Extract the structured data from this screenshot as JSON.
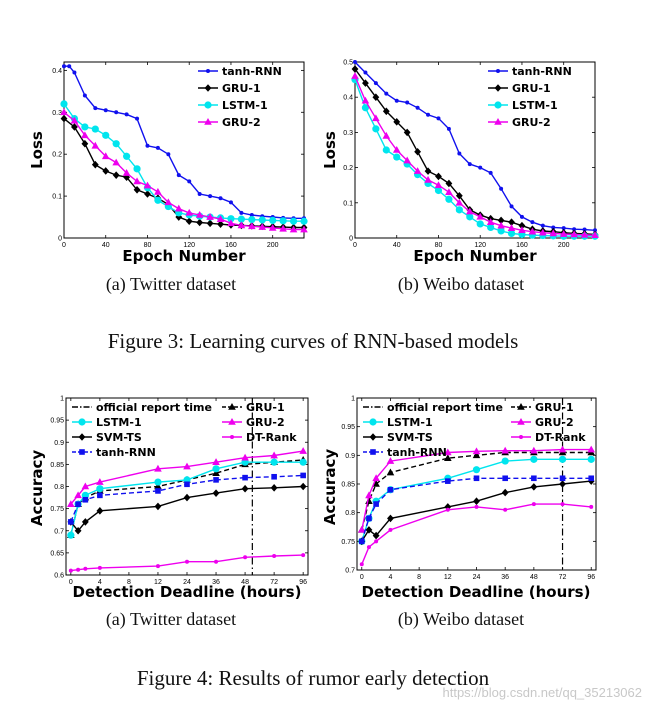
{
  "figure3": {
    "caption": "Figure 3: Learning curves of RNN-based models",
    "panels": [
      {
        "sub_caption": "(a)  Twitter dataset"
      },
      {
        "sub_caption": "(b)  Weibo dataset"
      }
    ]
  },
  "figure4": {
    "caption": "Figure 4: Results of rumor early detection",
    "panels": [
      {
        "sub_caption": "(a)  Twitter dataset"
      },
      {
        "sub_caption": "(b)  Weibo dataset"
      }
    ]
  },
  "watermark": "https://blog.csdn.net/qq_35213062",
  "colors": {
    "tanh-RNN": "#1010ee",
    "GRU-1": "#000000",
    "LSTM-1": "#00e5ee",
    "GRU-2": "#ee00ee",
    "SVM-TS": "#000000",
    "DT-Rank": "#ee00ee",
    "official": "#000000"
  },
  "chart_data": [
    {
      "type": "line",
      "title": "(a)  Twitter dataset",
      "xlabel": "Epoch Number",
      "ylabel": "Loss",
      "xlim": [
        0,
        230
      ],
      "ylim": [
        0,
        0.42
      ],
      "xticks": [
        0,
        40,
        80,
        120,
        160,
        200
      ],
      "xtick_labels": [
        "0",
        "40",
        "80",
        "120",
        "160",
        "200"
      ],
      "yticks": [
        0,
        0.1,
        0.2,
        0.3,
        0.4
      ],
      "ytick_labels": [
        "0",
        "0.1",
        "0.2",
        "0.3",
        "0.4"
      ],
      "legend_position": "top-right",
      "series": [
        {
          "name": "tanh-RNN",
          "marker": "dot",
          "dash": false,
          "x": [
            0,
            5,
            10,
            20,
            30,
            40,
            50,
            60,
            70,
            80,
            90,
            100,
            110,
            120,
            130,
            140,
            150,
            160,
            170,
            180,
            190,
            200,
            210,
            220,
            230
          ],
          "values": [
            0.41,
            0.41,
            0.395,
            0.34,
            0.31,
            0.305,
            0.3,
            0.295,
            0.285,
            0.22,
            0.215,
            0.2,
            0.15,
            0.135,
            0.105,
            0.1,
            0.095,
            0.085,
            0.06,
            0.055,
            0.052,
            0.05,
            0.048,
            0.047,
            0.047
          ]
        },
        {
          "name": "GRU-1",
          "marker": "diamond",
          "dash": false,
          "x": [
            0,
            10,
            20,
            30,
            40,
            50,
            60,
            70,
            80,
            90,
            100,
            110,
            120,
            130,
            140,
            150,
            160,
            170,
            180,
            190,
            200,
            210,
            220,
            230
          ],
          "values": [
            0.285,
            0.265,
            0.225,
            0.175,
            0.16,
            0.15,
            0.145,
            0.115,
            0.105,
            0.095,
            0.08,
            0.05,
            0.04,
            0.037,
            0.035,
            0.033,
            0.031,
            0.03,
            0.029,
            0.028,
            0.027,
            0.026,
            0.025,
            0.025
          ]
        },
        {
          "name": "LSTM-1",
          "marker": "circle",
          "dash": false,
          "x": [
            0,
            10,
            20,
            30,
            40,
            50,
            60,
            70,
            80,
            90,
            100,
            110,
            120,
            130,
            140,
            150,
            160,
            170,
            180,
            190,
            200,
            210,
            220,
            230
          ],
          "values": [
            0.32,
            0.285,
            0.265,
            0.26,
            0.245,
            0.225,
            0.195,
            0.165,
            0.12,
            0.09,
            0.075,
            0.06,
            0.055,
            0.052,
            0.05,
            0.048,
            0.046,
            0.045,
            0.044,
            0.043,
            0.042,
            0.041,
            0.04,
            0.04
          ]
        },
        {
          "name": "GRU-2",
          "marker": "triangle",
          "dash": false,
          "x": [
            0,
            10,
            20,
            30,
            40,
            50,
            60,
            70,
            80,
            90,
            100,
            110,
            120,
            130,
            140,
            150,
            160,
            170,
            180,
            190,
            200,
            210,
            220,
            230
          ],
          "values": [
            0.3,
            0.28,
            0.245,
            0.22,
            0.195,
            0.18,
            0.155,
            0.135,
            0.125,
            0.11,
            0.085,
            0.07,
            0.06,
            0.055,
            0.05,
            0.045,
            0.035,
            0.03,
            0.028,
            0.026,
            0.024,
            0.022,
            0.02,
            0.02
          ]
        }
      ]
    },
    {
      "type": "line",
      "title": "(b)  Weibo dataset",
      "xlabel": "Epoch Number",
      "ylabel": "Loss",
      "xlim": [
        0,
        230
      ],
      "ylim": [
        0,
        0.5
      ],
      "xticks": [
        0,
        40,
        80,
        120,
        160,
        200
      ],
      "xtick_labels": [
        "0",
        "40",
        "80",
        "120",
        "160",
        "200"
      ],
      "yticks": [
        0,
        0.1,
        0.2,
        0.3,
        0.4,
        0.5
      ],
      "ytick_labels": [
        "0",
        "0.1",
        "0.2",
        "0.3",
        "0.4",
        "0.5"
      ],
      "legend_position": "top-right",
      "series": [
        {
          "name": "tanh-RNN",
          "marker": "dot",
          "dash": false,
          "x": [
            0,
            10,
            20,
            30,
            40,
            50,
            60,
            70,
            80,
            90,
            100,
            110,
            120,
            130,
            140,
            150,
            160,
            170,
            180,
            190,
            200,
            210,
            220,
            230
          ],
          "values": [
            0.5,
            0.47,
            0.44,
            0.41,
            0.39,
            0.385,
            0.37,
            0.35,
            0.34,
            0.31,
            0.24,
            0.21,
            0.2,
            0.185,
            0.14,
            0.09,
            0.06,
            0.045,
            0.035,
            0.03,
            0.028,
            0.025,
            0.024,
            0.022
          ]
        },
        {
          "name": "GRU-1",
          "marker": "diamond",
          "dash": false,
          "x": [
            0,
            10,
            20,
            30,
            40,
            50,
            60,
            70,
            80,
            90,
            100,
            110,
            120,
            130,
            140,
            150,
            160,
            170,
            180,
            190,
            200,
            210,
            220,
            230
          ],
          "values": [
            0.48,
            0.44,
            0.4,
            0.36,
            0.33,
            0.3,
            0.245,
            0.19,
            0.175,
            0.155,
            0.12,
            0.08,
            0.065,
            0.055,
            0.05,
            0.045,
            0.035,
            0.025,
            0.02,
            0.018,
            0.015,
            0.013,
            0.012,
            0.01
          ]
        },
        {
          "name": "LSTM-1",
          "marker": "circle",
          "dash": false,
          "x": [
            0,
            10,
            20,
            30,
            40,
            50,
            60,
            70,
            80,
            90,
            100,
            110,
            120,
            130,
            140,
            150,
            160,
            170,
            180,
            190,
            200,
            210,
            220,
            230
          ],
          "values": [
            0.45,
            0.37,
            0.31,
            0.25,
            0.23,
            0.21,
            0.18,
            0.155,
            0.135,
            0.11,
            0.08,
            0.06,
            0.04,
            0.03,
            0.02,
            0.013,
            0.01,
            0.008,
            0.007,
            0.006,
            0.005,
            0.005,
            0.005,
            0.005
          ]
        },
        {
          "name": "GRU-2",
          "marker": "triangle",
          "dash": false,
          "x": [
            0,
            10,
            20,
            30,
            40,
            50,
            60,
            70,
            80,
            90,
            100,
            110,
            120,
            130,
            140,
            150,
            160,
            170,
            180,
            190,
            200,
            210,
            220,
            230
          ],
          "values": [
            0.46,
            0.39,
            0.34,
            0.29,
            0.25,
            0.22,
            0.19,
            0.165,
            0.15,
            0.13,
            0.1,
            0.075,
            0.06,
            0.045,
            0.035,
            0.028,
            0.022,
            0.018,
            0.015,
            0.013,
            0.011,
            0.01,
            0.009,
            0.008
          ]
        }
      ]
    },
    {
      "type": "line",
      "title": "(a)  Twitter dataset",
      "xlabel": "Detection Deadline (hours)",
      "ylabel": "Accuracy",
      "xlim": [
        0,
        100
      ],
      "ylim": [
        0.6,
        1.0
      ],
      "xticks": [
        0,
        4,
        8,
        12,
        24,
        36,
        48,
        72,
        96
      ],
      "xtick_positions": [
        0,
        1,
        2,
        3,
        4,
        5,
        6,
        7,
        8
      ],
      "xtick_labels": [
        "0",
        "4",
        "8",
        "12",
        "24",
        "36",
        "48",
        "72",
        "96"
      ],
      "yticks": [
        0.6,
        0.65,
        0.7,
        0.75,
        0.8,
        0.85,
        0.9,
        0.95,
        1.0
      ],
      "ytick_labels": [
        "0.6",
        "0.65",
        "0.7",
        "0.75",
        "0.8",
        "0.85",
        "0.9",
        "0.95",
        "1"
      ],
      "official_report_time": 54,
      "legend_position": "top",
      "series": [
        {
          "name": "official report time",
          "marker": "none",
          "dash": "dashdot"
        },
        {
          "name": "GRU-1",
          "marker": "triangle",
          "dash": true,
          "x": [
            0,
            1,
            2,
            4,
            12,
            24,
            36,
            48,
            72,
            96
          ],
          "values": [
            0.69,
            0.76,
            0.775,
            0.79,
            0.8,
            0.815,
            0.83,
            0.85,
            0.855,
            0.86
          ]
        },
        {
          "name": "LSTM-1",
          "marker": "circle",
          "dash": false,
          "x": [
            0,
            1,
            2,
            4,
            12,
            24,
            36,
            48,
            72,
            96
          ],
          "values": [
            0.69,
            0.76,
            0.78,
            0.795,
            0.81,
            0.815,
            0.84,
            0.855,
            0.855,
            0.855
          ]
        },
        {
          "name": "GRU-2",
          "marker": "triangle",
          "dash": false,
          "x": [
            0,
            1,
            2,
            4,
            12,
            24,
            36,
            48,
            72,
            96
          ],
          "values": [
            0.76,
            0.78,
            0.8,
            0.81,
            0.84,
            0.845,
            0.855,
            0.865,
            0.87,
            0.88
          ]
        },
        {
          "name": "SVM-TS",
          "marker": "diamond",
          "dash": false,
          "x": [
            0,
            1,
            2,
            4,
            12,
            24,
            36,
            48,
            72,
            96
          ],
          "values": [
            0.72,
            0.7,
            0.72,
            0.745,
            0.755,
            0.775,
            0.785,
            0.795,
            0.797,
            0.8
          ]
        },
        {
          "name": "DT-Rank",
          "marker": "dot",
          "dash": false,
          "x": [
            0,
            1,
            2,
            4,
            12,
            24,
            36,
            48,
            72,
            96
          ],
          "values": [
            0.61,
            0.612,
            0.614,
            0.616,
            0.62,
            0.63,
            0.63,
            0.64,
            0.643,
            0.645
          ]
        },
        {
          "name": "tanh-RNN",
          "marker": "square",
          "dash": true,
          "x": [
            0,
            1,
            2,
            4,
            12,
            24,
            36,
            48,
            72,
            96
          ],
          "values": [
            0.72,
            0.76,
            0.77,
            0.78,
            0.79,
            0.805,
            0.815,
            0.82,
            0.822,
            0.825
          ]
        }
      ]
    },
    {
      "type": "line",
      "title": "(b)  Weibo dataset",
      "xlabel": "Detection Deadline (hours)",
      "ylabel": "Accuracy",
      "xlim": [
        0,
        100
      ],
      "ylim": [
        0.7,
        1.0
      ],
      "xticks": [
        0,
        4,
        8,
        12,
        24,
        36,
        48,
        72,
        96
      ],
      "xtick_positions": [
        0,
        1,
        2,
        3,
        4,
        5,
        6,
        7,
        8
      ],
      "xtick_labels": [
        "0",
        "4",
        "8",
        "12",
        "24",
        "36",
        "48",
        "72",
        "96"
      ],
      "yticks": [
        0.7,
        0.75,
        0.8,
        0.85,
        0.9,
        0.95,
        1.0
      ],
      "ytick_labels": [
        "0.7",
        "0.75",
        "0.8",
        "0.85",
        "0.9",
        "0.95",
        "1"
      ],
      "official_report_time": 72,
      "legend_position": "top",
      "series": [
        {
          "name": "official report time",
          "marker": "none",
          "dash": "dashdot"
        },
        {
          "name": "GRU-1",
          "marker": "triangle",
          "dash": true,
          "x": [
            0,
            1,
            2,
            4,
            12,
            24,
            36,
            48,
            72,
            96
          ],
          "values": [
            0.77,
            0.82,
            0.85,
            0.87,
            0.895,
            0.9,
            0.905,
            0.905,
            0.905,
            0.905
          ]
        },
        {
          "name": "LSTM-1",
          "marker": "circle",
          "dash": false,
          "x": [
            0,
            1,
            2,
            4,
            12,
            24,
            36,
            48,
            72,
            96
          ],
          "values": [
            0.75,
            0.79,
            0.82,
            0.84,
            0.86,
            0.875,
            0.89,
            0.893,
            0.893,
            0.893
          ]
        },
        {
          "name": "GRU-2",
          "marker": "triangle",
          "dash": false,
          "x": [
            0,
            1,
            2,
            4,
            12,
            24,
            36,
            48,
            72,
            96
          ],
          "values": [
            0.77,
            0.83,
            0.86,
            0.89,
            0.905,
            0.907,
            0.908,
            0.908,
            0.91,
            0.91
          ]
        },
        {
          "name": "SVM-TS",
          "marker": "diamond",
          "dash": false,
          "x": [
            0,
            1,
            2,
            4,
            12,
            24,
            36,
            48,
            72,
            96
          ],
          "values": [
            0.75,
            0.77,
            0.76,
            0.79,
            0.81,
            0.82,
            0.835,
            0.845,
            0.85,
            0.855
          ]
        },
        {
          "name": "DT-Rank",
          "marker": "dot",
          "dash": false,
          "x": [
            0,
            1,
            2,
            4,
            12,
            24,
            36,
            48,
            72,
            96
          ],
          "values": [
            0.71,
            0.74,
            0.75,
            0.77,
            0.805,
            0.81,
            0.805,
            0.815,
            0.815,
            0.81
          ]
        },
        {
          "name": "tanh-RNN",
          "marker": "square",
          "dash": true,
          "x": [
            0,
            1,
            2,
            4,
            12,
            24,
            36,
            48,
            72,
            96
          ],
          "values": [
            0.75,
            0.79,
            0.815,
            0.84,
            0.855,
            0.86,
            0.86,
            0.86,
            0.86,
            0.86
          ]
        }
      ]
    }
  ]
}
